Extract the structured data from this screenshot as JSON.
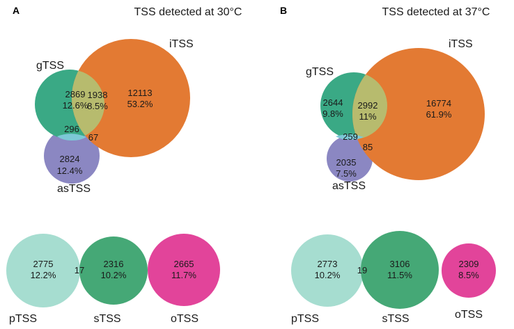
{
  "colors": {
    "gTSS": "#3aa985",
    "iTSS": "#e37a33",
    "asTSS": "#8b87c2",
    "overlap_g_i": "#b7bb6e",
    "overlap_g_as": "#7cc8d6",
    "pTSS": "#a6ddd0",
    "sTSS": "#45a876",
    "oTSS": "#e2449a"
  },
  "panels": [
    {
      "letter": "A",
      "title": "TSS detected at 30°C",
      "venn": {
        "gTSS": {
          "label": "gTSS",
          "count": "2869",
          "pct": "12.6%"
        },
        "iTSS": {
          "label": "iTSS",
          "count": "12113",
          "pct": "53.2%"
        },
        "asTSS": {
          "label": "asTSS",
          "count": "2824",
          "pct": "12.4%"
        },
        "g_i": {
          "count": "1938",
          "pct": "8.5%"
        },
        "g_as": {
          "count": "296"
        },
        "i_as": {
          "count": "67"
        }
      },
      "bottom": {
        "pTSS": {
          "label": "pTSS",
          "count": "2775",
          "pct": "12.2%"
        },
        "p_s": {
          "count": "17"
        },
        "sTSS": {
          "label": "sTSS",
          "count": "2316",
          "pct": "10.2%"
        },
        "oTSS": {
          "label": "oTSS",
          "count": "2665",
          "pct": "11.7%"
        }
      }
    },
    {
      "letter": "B",
      "title": "TSS detected at 37°C",
      "venn": {
        "gTSS": {
          "label": "gTSS",
          "count": "2644",
          "pct": "9.8%"
        },
        "iTSS": {
          "label": "iTSS",
          "count": "16774",
          "pct": "61.9%"
        },
        "asTSS": {
          "label": "asTSS",
          "count": "2035",
          "pct": "7.5%"
        },
        "g_i": {
          "count": "2992",
          "pct": "11%"
        },
        "g_as": {
          "count": "259"
        },
        "i_as": {
          "count": "85"
        }
      },
      "bottom": {
        "pTSS": {
          "label": "pTSS",
          "count": "2773",
          "pct": "10.2%"
        },
        "p_s": {
          "count": "19"
        },
        "sTSS": {
          "label": "sTSS",
          "count": "3106",
          "pct": "11.5%"
        },
        "oTSS": {
          "label": "oTSS",
          "count": "2309",
          "pct": "8.5%"
        }
      }
    }
  ]
}
